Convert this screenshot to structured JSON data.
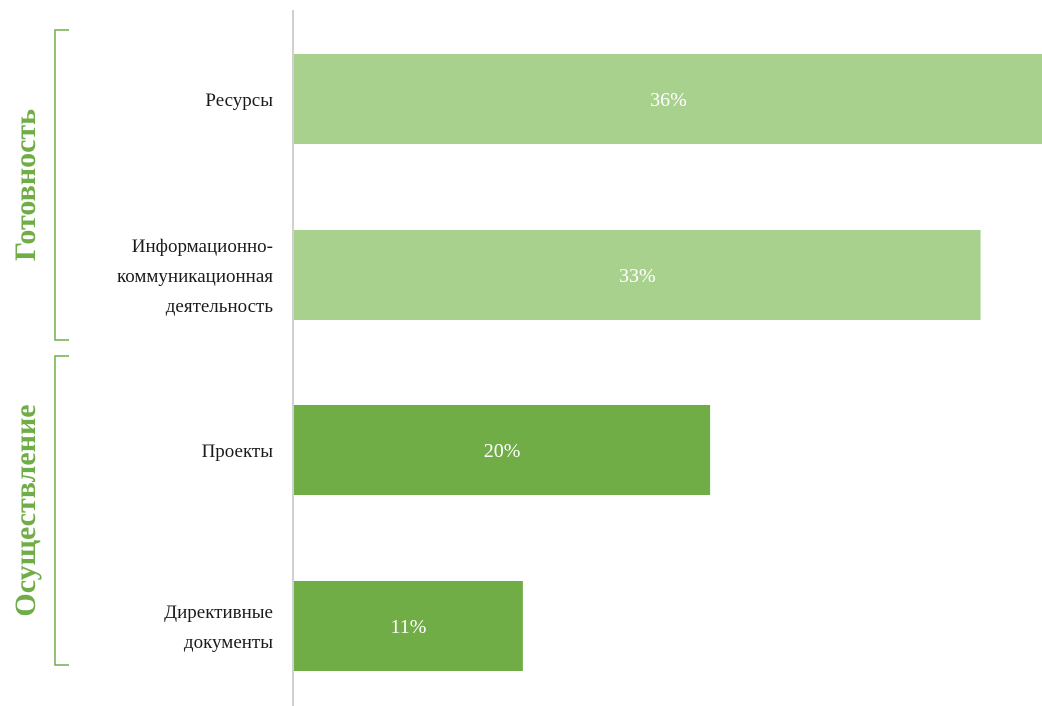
{
  "chart_data": {
    "type": "bar",
    "orientation": "horizontal",
    "categories": [
      [
        "Ресурсы"
      ],
      [
        "Информационно-",
        "коммуникационная",
        "деятельность"
      ],
      [
        "Проекты"
      ],
      [
        "Директивные",
        "документы"
      ]
    ],
    "values": [
      36,
      33,
      20,
      11
    ],
    "value_labels": [
      "36%",
      "33%",
      "20%",
      "11%"
    ],
    "unit": "%",
    "xlim": [
      0,
      36
    ],
    "groups": [
      {
        "name": "Готовность",
        "categories": [
          0,
          1
        ],
        "color": "#a9d18e"
      },
      {
        "name": "Осуществление",
        "categories": [
          2,
          3
        ],
        "color": "#70ad47"
      }
    ],
    "grid": false,
    "legend": "none"
  },
  "colors": {
    "group_label": "#70ad47",
    "bracket": "#70ad47",
    "axis": "#d0d0d0"
  }
}
